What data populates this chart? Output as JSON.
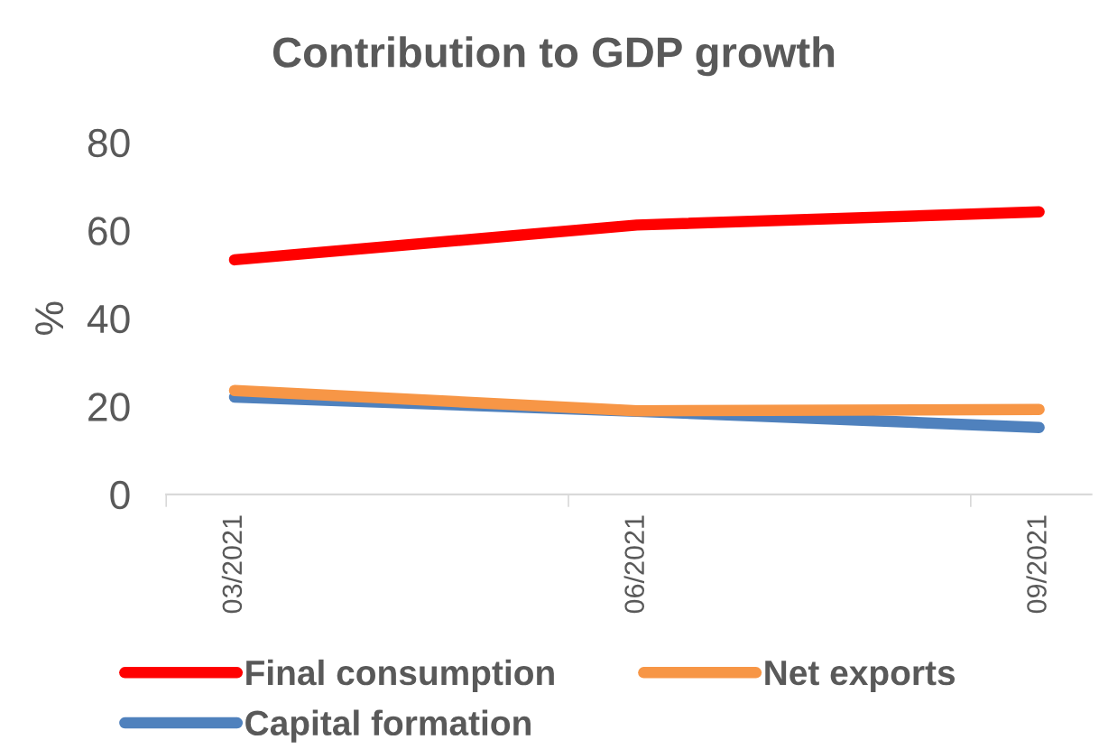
{
  "chart_data": {
    "type": "line",
    "title": "Contribution to GDP growth",
    "ylabel": "%",
    "categories": [
      "03/2021",
      "06/2021",
      "09/2021"
    ],
    "series": [
      {
        "name": "Final consumption",
        "color": "#ff0000",
        "values": [
          53.3,
          61.2,
          64.2
        ]
      },
      {
        "name": "Capital formation",
        "color": "#4f81bd",
        "values": [
          22.1,
          18.9,
          15.2
        ]
      },
      {
        "name": "Net exports",
        "color": "#f79646",
        "values": [
          23.6,
          19.0,
          19.3
        ]
      }
    ],
    "ylim": [
      0,
      80
    ],
    "yticks": [
      0,
      20,
      40,
      60,
      80
    ],
    "grid": false,
    "legend": "bottom",
    "marker": "none",
    "line_style": "solid"
  }
}
